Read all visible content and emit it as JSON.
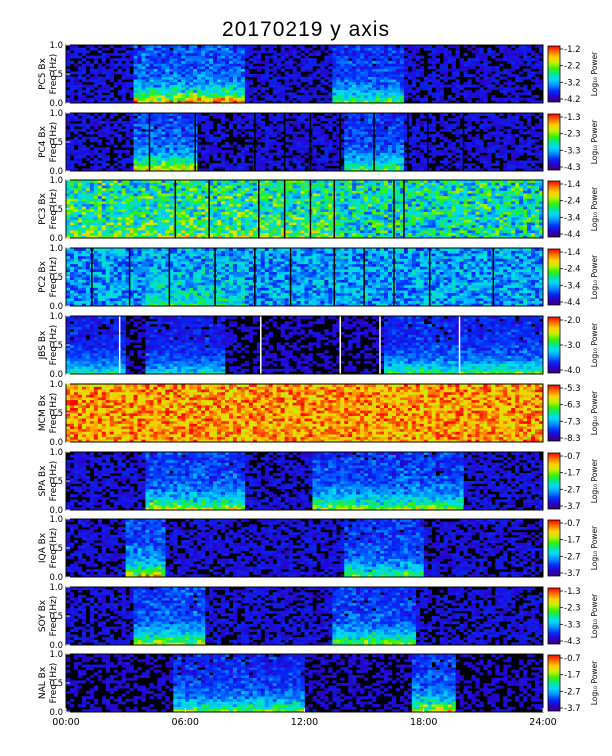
{
  "title": "20170219 y axis",
  "colors": {
    "background": "#000000",
    "colormap": [
      "#3b0078",
      "#2a00c8",
      "#0030ff",
      "#0090ff",
      "#00d8ff",
      "#00e890",
      "#3cf000",
      "#c8f000",
      "#ffd000",
      "#ff7000",
      "#ff0000"
    ]
  },
  "chart_data": [
    {
      "type": "heatmap",
      "station_label": "PC5 Bx",
      "ylabel": "Freq (Hz)",
      "yticks": [
        "1.0",
        "0.5",
        "0.0"
      ],
      "ylim": [
        0,
        1.0
      ],
      "colorbar_label": "Log₁₀ Power",
      "colorbar_ticks": [
        "-1.2",
        "-2.2",
        "-3.2",
        "-4.2"
      ],
      "base_level": 0.12,
      "data_gaps_hours": [],
      "activity": [
        {
          "start_hour": 3.5,
          "end_hour": 9,
          "strength": 0.75
        },
        {
          "start_hour": 13.5,
          "end_hour": 17,
          "strength": 0.5
        }
      ]
    },
    {
      "type": "heatmap",
      "station_label": "PC4 Bx",
      "ylabel": "Freq (Hz)",
      "yticks": [
        "1.0",
        "0.5",
        "0.0"
      ],
      "ylim": [
        0,
        1.0
      ],
      "colorbar_label": "Log₁₀ Power",
      "colorbar_ticks": [
        "-1.3",
        "-2.3",
        "-3.3",
        "-4.3"
      ],
      "base_level": 0.12,
      "data_gaps_hours": [
        4.2,
        6.5,
        9.5,
        11.0,
        12.3,
        13.8,
        15.5,
        17.2,
        18.2,
        20.0
      ],
      "activity": [
        {
          "start_hour": 3.5,
          "end_hour": 6.5,
          "strength": 0.7
        },
        {
          "start_hour": 14,
          "end_hour": 17,
          "strength": 0.5
        }
      ]
    },
    {
      "type": "heatmap",
      "station_label": "PC3 Bx",
      "ylabel": "Freq (Hz)",
      "yticks": [
        "1.0",
        "0.5",
        "0.0"
      ],
      "ylim": [
        0,
        1.0
      ],
      "colorbar_label": "Log₁₀ Power",
      "colorbar_ticks": [
        "-1.4",
        "-2.4",
        "-3.4",
        "-4.4"
      ],
      "base_level": 0.45,
      "data_gaps_hours": [
        5.5,
        7.2,
        9.7,
        11.0,
        12.3,
        13.5,
        16.5,
        17.0
      ],
      "activity": [
        {
          "start_hour": 0,
          "end_hour": 13.5,
          "strength": 0.2
        }
      ]
    },
    {
      "type": "heatmap",
      "station_label": "PC2 Bx",
      "ylabel": "Freq (Hz)",
      "yticks": [
        "1.0",
        "0.5",
        "0.0"
      ],
      "ylim": [
        0,
        1.0
      ],
      "colorbar_label": "Log₁₀ Power",
      "colorbar_ticks": [
        "-1.4",
        "-2.4",
        "-3.4",
        "-4.4"
      ],
      "base_level": 0.32,
      "data_gaps_hours": [
        1.3,
        3.2,
        5.2,
        7.5,
        9.5,
        11.3,
        13.5,
        15.0,
        16.5,
        18.3,
        21.5
      ],
      "activity": [
        {
          "start_hour": 4,
          "end_hour": 9,
          "strength": 0.2
        }
      ]
    },
    {
      "type": "heatmap",
      "station_label": "JBS Bx",
      "ylabel": "Freq (Hz)",
      "yticks": [
        "1.0",
        "0.5",
        "0.0"
      ],
      "ylim": [
        0,
        1.0
      ],
      "colorbar_label": "Log₁₀ Power",
      "colorbar_ticks": [
        "-2.0",
        "-3.0",
        "-4.0"
      ],
      "base_level": 0.1,
      "data_gaps_hours": [
        2.7,
        9.8,
        13.8,
        15.8,
        19.8
      ],
      "activity": [
        {
          "start_hour": 0,
          "end_hour": 3,
          "strength": 0.4
        },
        {
          "start_hour": 4,
          "end_hour": 8,
          "strength": 0.35
        },
        {
          "start_hour": 16,
          "end_hour": 24,
          "strength": 0.5
        }
      ]
    },
    {
      "type": "heatmap",
      "station_label": "MCM Bx",
      "ylabel": "Freq (Hz)",
      "yticks": [
        "1.0",
        "0.5",
        "0.0"
      ],
      "ylim": [
        0,
        1.0
      ],
      "colorbar_label": "Log₁₀ Power",
      "colorbar_ticks": [
        "-5.3",
        "-6.3",
        "-7.3",
        "-8.3"
      ],
      "base_level": 0.85,
      "data_gaps_hours": [],
      "activity": []
    },
    {
      "type": "heatmap",
      "station_label": "SPA Bx",
      "ylabel": "Freq (Hz)",
      "yticks": [
        "1.0",
        "0.5",
        "0.0"
      ],
      "ylim": [
        0,
        1.0
      ],
      "colorbar_label": "Log₁₀ Power",
      "colorbar_ticks": [
        "-0.7",
        "-1.7",
        "-2.7",
        "-3.7"
      ],
      "base_level": 0.12,
      "data_gaps_hours": [],
      "activity": [
        {
          "start_hour": 4,
          "end_hour": 9,
          "strength": 0.6
        },
        {
          "start_hour": 12.5,
          "end_hour": 20,
          "strength": 0.6
        }
      ]
    },
    {
      "type": "heatmap",
      "station_label": "IQA Bx",
      "ylabel": "Freq (Hz)",
      "yticks": [
        "1.0",
        "0.5",
        "0.0"
      ],
      "ylim": [
        0,
        1.0
      ],
      "colorbar_label": "Log₁₀ Power",
      "colorbar_ticks": [
        "-0.7",
        "-1.7",
        "-2.7",
        "-3.7"
      ],
      "base_level": 0.12,
      "data_gaps_hours": [],
      "activity": [
        {
          "start_hour": 3,
          "end_hour": 5,
          "strength": 0.7
        },
        {
          "start_hour": 14,
          "end_hour": 18,
          "strength": 0.5
        }
      ]
    },
    {
      "type": "heatmap",
      "station_label": "SOY Bx",
      "ylabel": "Freq (Hz)",
      "yticks": [
        "1.0",
        "0.5",
        "0.0"
      ],
      "ylim": [
        0,
        1.0
      ],
      "colorbar_label": "Log₁₀ Power",
      "colorbar_ticks": [
        "-1.3",
        "-2.3",
        "-3.3",
        "-4.3"
      ],
      "base_level": 0.12,
      "data_gaps_hours": [],
      "activity": [
        {
          "start_hour": 3.5,
          "end_hour": 7,
          "strength": 0.6
        },
        {
          "start_hour": 13.5,
          "end_hour": 17.5,
          "strength": 0.55
        }
      ]
    },
    {
      "type": "heatmap",
      "station_label": "NAL Bx",
      "ylabel": "Freq (Hz)",
      "yticks": [
        "1.0",
        "0.5",
        "0.0"
      ],
      "ylim": [
        0,
        1.0
      ],
      "colorbar_label": "Log₁₀ Power",
      "colorbar_ticks": [
        "-0.7",
        "-1.7",
        "-2.7",
        "-3.7"
      ],
      "base_level": 0.1,
      "data_gaps_hours": [],
      "activity": [
        {
          "start_hour": 5.5,
          "end_hour": 12,
          "strength": 0.55
        },
        {
          "start_hour": 17.5,
          "end_hour": 19.5,
          "strength": 0.7
        }
      ],
      "xticks": [
        "00:00",
        "06:00",
        "12:00",
        "18:00",
        "24:00"
      ],
      "xlim_hours": [
        0,
        24
      ]
    }
  ]
}
